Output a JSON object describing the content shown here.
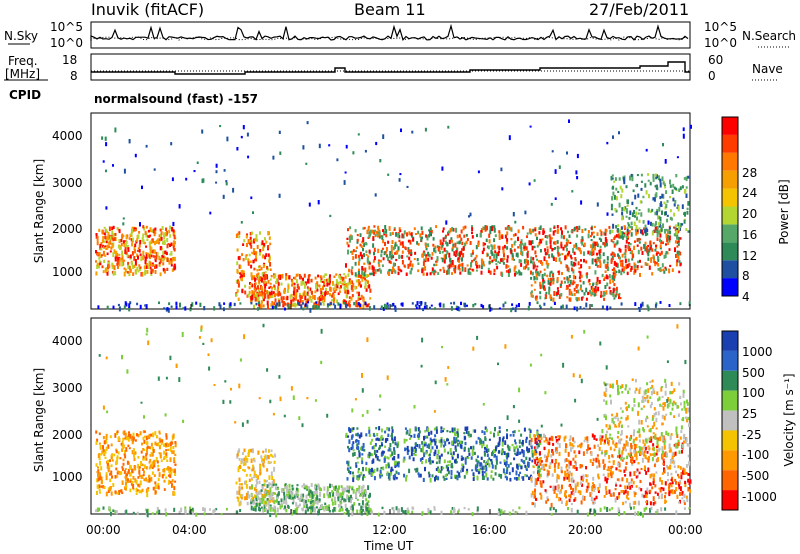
{
  "header": {
    "station": "Inuvik (fitACF)",
    "beam": "Beam 11",
    "date": "27/Feb/2011"
  },
  "side_labels": {
    "nsky": "N.Sky",
    "freq_line1": "Freq.",
    "freq_line2": "[MHz]",
    "cpid": "CPID",
    "nsearch": "N.Search",
    "nave": "Nave"
  },
  "mode_text": "normalsound (fast) -157",
  "colors": {
    "power": [
      "#0000ff",
      "#1f4fa0",
      "#2e8b57",
      "#55a867",
      "#b4d633",
      "#f5c400",
      "#f5a000",
      "#ff7800",
      "#ff3c00",
      "#ff0000"
    ],
    "velocity_pos": [
      "#1a3fb0",
      "#2a64c8",
      "#2e8b57",
      "#7ccf3a",
      "#c0c0c0"
    ],
    "velocity_neg": [
      "#f5c400",
      "#ff9900",
      "#ff6600",
      "#ff0000"
    ]
  },
  "chart_data": [
    {
      "type": "line",
      "panel": "noise",
      "ylabel_left": "N.Sky",
      "ylabel_right": "N.Search",
      "left_ticks": [
        "10^5",
        "10^0"
      ],
      "right_ticks": [
        "10^5",
        "10^0"
      ]
    },
    {
      "type": "line",
      "panel": "frequency",
      "ylabel_left": "Freq. [MHz]",
      "ylabel_right": "Nave",
      "left_ticks": [
        "18",
        "8"
      ],
      "right_ticks": [
        "60",
        "0"
      ]
    },
    {
      "type": "heatmap",
      "panel": "power",
      "ylabel": "Slant Range [km]",
      "y_ticks": [
        "4000",
        "3000",
        "2000",
        "1000"
      ],
      "ylim": [
        180,
        4600
      ],
      "colorbar_label": "Power [dB]",
      "colorbar_ticks": [
        "28",
        "24",
        "20",
        "16",
        "12",
        "8",
        "4"
      ]
    },
    {
      "type": "heatmap",
      "panel": "velocity",
      "ylabel": "Slant Range [km]",
      "y_ticks": [
        "4000",
        "3000",
        "2000",
        "1000"
      ],
      "ylim": [
        180,
        4600
      ],
      "colorbar_label": "Velocity [m s⁻¹]",
      "colorbar_ticks": [
        "1000",
        "500",
        "100",
        "25",
        "-25",
        "-100",
        "-500",
        "-1000"
      ]
    }
  ],
  "x_axis": {
    "label": "Time UT",
    "ticks": [
      "00:00",
      "04:00",
      "08:00",
      "12:00",
      "16:00",
      "20:00",
      "00:00"
    ]
  }
}
